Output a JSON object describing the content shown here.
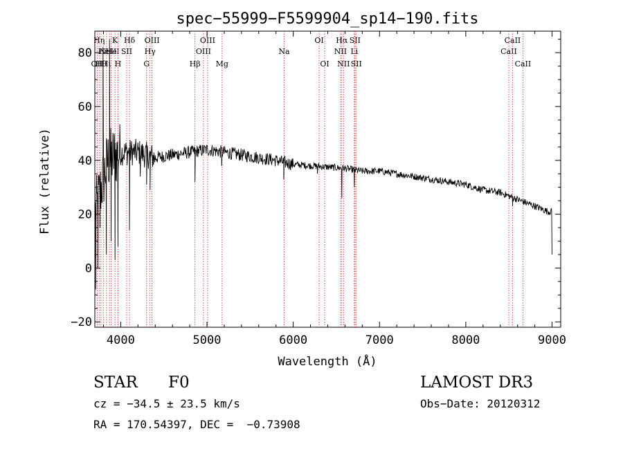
{
  "chart_data": {
    "type": "line",
    "title": "spec−55999−F5599904_sp14−190.fits",
    "xlabel": "Wavelength (Å)",
    "ylabel": "Flux (relative)",
    "xlim": [
      3700,
      9100
    ],
    "ylim": [
      -22,
      88
    ],
    "x_ticks": [
      4000,
      5000,
      6000,
      7000,
      8000,
      9000
    ],
    "y_ticks": [
      -20,
      0,
      20,
      40,
      60,
      80
    ],
    "line_color": "#000000",
    "marker_color": "#cc2222",
    "continuum": [
      [
        3700,
        20
      ],
      [
        3850,
        40
      ],
      [
        4000,
        43
      ],
      [
        4200,
        43
      ],
      [
        4400,
        41
      ],
      [
        4600,
        42
      ],
      [
        4800,
        43
      ],
      [
        5000,
        44
      ],
      [
        5200,
        43
      ],
      [
        5400,
        42
      ],
      [
        5600,
        41
      ],
      [
        5800,
        40
      ],
      [
        6000,
        38.5
      ],
      [
        6200,
        38
      ],
      [
        6400,
        37.5
      ],
      [
        6600,
        37
      ],
      [
        6800,
        36
      ],
      [
        7000,
        36
      ],
      [
        7200,
        35
      ],
      [
        7400,
        34
      ],
      [
        7600,
        33
      ],
      [
        7800,
        32
      ],
      [
        8000,
        31
      ],
      [
        8200,
        29
      ],
      [
        8400,
        28
      ],
      [
        8600,
        25.5
      ],
      [
        8800,
        23
      ],
      [
        8950,
        21
      ]
    ],
    "features": [
      [
        3710,
        -8
      ],
      [
        3735,
        0
      ],
      [
        3760,
        15
      ],
      [
        3795,
        82
      ],
      [
        3834,
        5
      ],
      [
        3870,
        85
      ],
      [
        3889,
        10
      ],
      [
        3934,
        3
      ],
      [
        3968,
        8
      ],
      [
        4101,
        14
      ],
      [
        4226,
        34
      ],
      [
        4300,
        31
      ],
      [
        4340,
        29
      ],
      [
        4861,
        32
      ],
      [
        5170,
        38
      ],
      [
        5890,
        33
      ],
      [
        6280,
        35
      ],
      [
        6563,
        26
      ],
      [
        6708,
        30
      ],
      [
        8542,
        23
      ],
      [
        8662,
        24
      ],
      [
        9000,
        5
      ]
    ],
    "line_markers": [
      {
        "x": 3727,
        "label": "OII",
        "row": 3
      },
      {
        "x": 3750,
        "label": "Hη",
        "row": 1
      },
      {
        "x": 3771,
        "label": "Hθ",
        "row": 3
      },
      {
        "x": 3798,
        "label": "Hε",
        "row": 2
      },
      {
        "x": 3835,
        "label": "Hι",
        "row": 3
      },
      {
        "x": 3869,
        "label": "NeIII",
        "row": 2
      },
      {
        "x": 3889,
        "label": "He",
        "row": 2
      },
      {
        "x": 3934,
        "label": "K",
        "row": 1
      },
      {
        "x": 3968,
        "label": "H",
        "row": 3
      },
      {
        "x": 4069,
        "label": "SII",
        "row": 2
      },
      {
        "x": 4102,
        "label": "Hδ",
        "row": 1
      },
      {
        "x": 4300,
        "label": "G",
        "row": 3
      },
      {
        "x": 4340,
        "label": "Hγ",
        "row": 2
      },
      {
        "x": 4363,
        "label": "OIII",
        "row": 1
      },
      {
        "x": 4861,
        "label": "Hβ",
        "row": 3
      },
      {
        "x": 4959,
        "label": "OIII",
        "row": 2
      },
      {
        "x": 5007,
        "label": "OIII",
        "row": 1
      },
      {
        "x": 5175,
        "label": "Mg",
        "row": 3
      },
      {
        "x": 5894,
        "label": "Na",
        "row": 2
      },
      {
        "x": 6300,
        "label": "OI",
        "row": 1
      },
      {
        "x": 6364,
        "label": "OI",
        "row": 3
      },
      {
        "x": 6548,
        "label": "NII",
        "row": 2
      },
      {
        "x": 6563,
        "label": "Hα",
        "row": 1
      },
      {
        "x": 6583,
        "label": "NII",
        "row": 3
      },
      {
        "x": 6708,
        "label": "Li",
        "row": 2
      },
      {
        "x": 6716,
        "label": "SII",
        "row": 1
      },
      {
        "x": 6731,
        "label": "SII",
        "row": 3
      },
      {
        "x": 8498,
        "label": "CaII",
        "row": 2
      },
      {
        "x": 8542,
        "label": "CaII",
        "row": 1
      },
      {
        "x": 8662,
        "label": "CaII",
        "row": 3
      }
    ]
  },
  "info": {
    "class": "STAR",
    "subclass": "F0",
    "redshift": "cz = −34.5 ± 23.5 km/s",
    "coords": "RA = 170.54397, DEC =  −0.73908",
    "survey": "LAMOST DR3",
    "obs_date": "Obs−Date: 20120312"
  }
}
